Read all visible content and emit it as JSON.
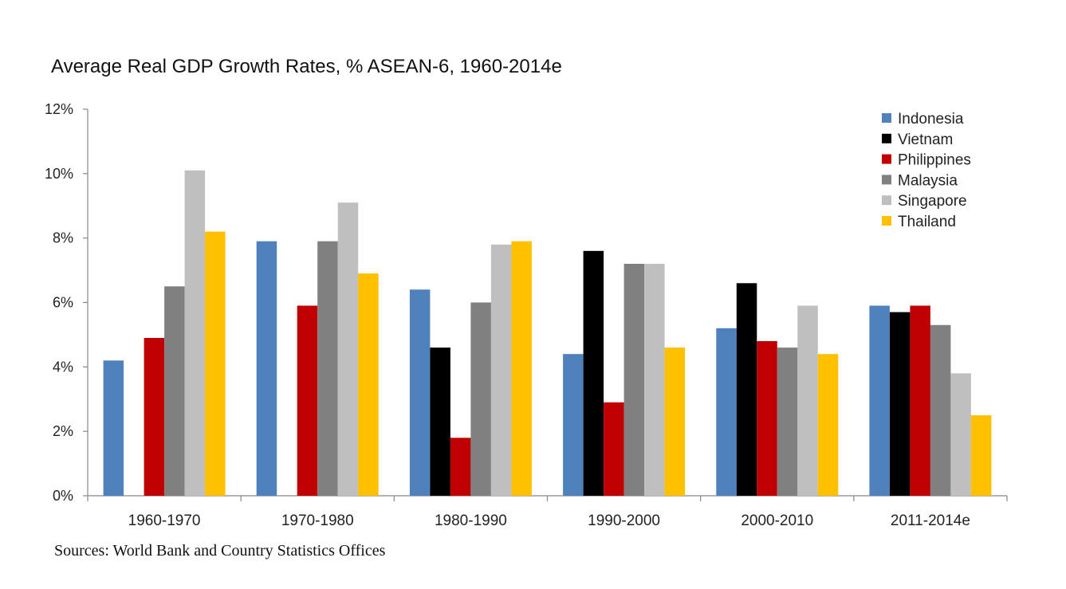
{
  "chart_data": {
    "type": "bar",
    "title": "Average Real GDP Growth Rates, % ASEAN-6, 1960-2014e",
    "source": "Sources: World Bank and Country Statistics Offices",
    "categories": [
      "1960-1970",
      "1970-1980",
      "1980-1990",
      "1990-2000",
      "2000-2010",
      "2011-2014e"
    ],
    "ylim": [
      0,
      12
    ],
    "yticks": [
      0,
      2,
      4,
      6,
      8,
      10,
      12
    ],
    "ytick_labels": [
      "0%",
      "2%",
      "4%",
      "6%",
      "8%",
      "10%",
      "12%"
    ],
    "grid": false,
    "legend_position": "top-right",
    "series": [
      {
        "name": "Indonesia",
        "color": "#4f81bd",
        "values": [
          4.2,
          7.9,
          6.4,
          4.4,
          5.2,
          5.9
        ]
      },
      {
        "name": "Vietnam",
        "color": "#000000",
        "values": [
          null,
          null,
          4.6,
          7.6,
          6.6,
          5.7
        ]
      },
      {
        "name": "Philippines",
        "color": "#c00000",
        "values": [
          4.9,
          5.9,
          1.8,
          2.9,
          4.8,
          5.9
        ]
      },
      {
        "name": "Malaysia",
        "color": "#808080",
        "values": [
          6.5,
          7.9,
          6.0,
          7.2,
          4.6,
          5.3
        ]
      },
      {
        "name": "Singapore",
        "color": "#bfbfbf",
        "values": [
          10.1,
          9.1,
          7.8,
          7.2,
          5.9,
          3.8
        ]
      },
      {
        "name": "Thailand",
        "color": "#ffc000",
        "values": [
          8.2,
          6.9,
          7.9,
          4.6,
          4.4,
          2.5
        ]
      }
    ]
  }
}
